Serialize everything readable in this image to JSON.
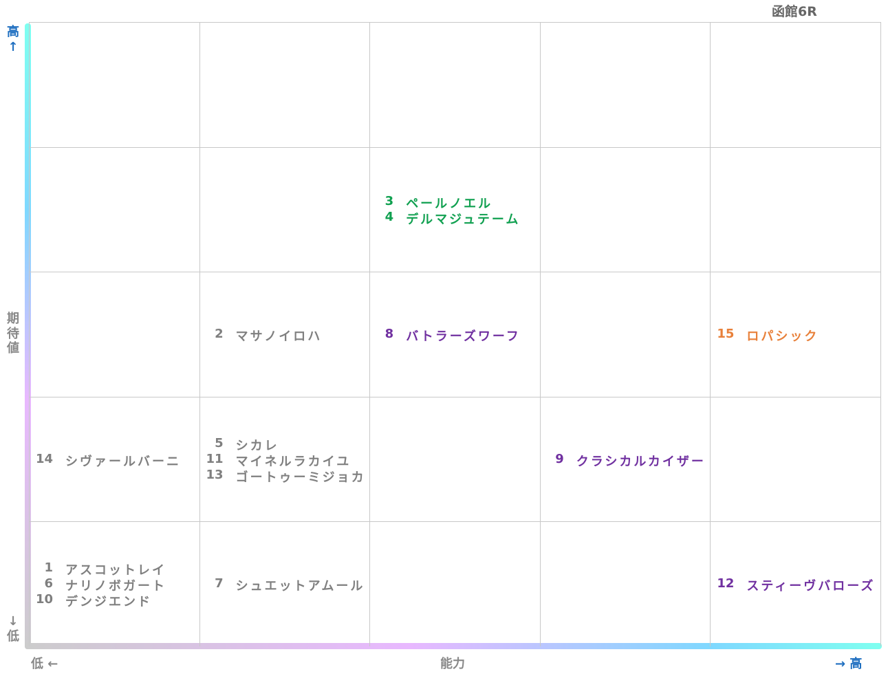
{
  "title": "函館6R",
  "y_axis": {
    "high": "高↑",
    "label": "期待値",
    "low": "↓低"
  },
  "x_axis": {
    "low": "低 ←",
    "label": "能力",
    "high": "→ 高"
  },
  "grid": {
    "rows": [
      [
        [],
        [],
        [],
        [],
        []
      ],
      [
        [],
        [],
        [
          {
            "number": 3,
            "name": "ペールノエル",
            "color": "#10a050"
          },
          {
            "number": 4,
            "name": "デルマジュテーム",
            "color": "#10a050"
          }
        ],
        [],
        []
      ],
      [
        [],
        [
          {
            "number": 2,
            "name": "マサノイロハ",
            "color": "#7f7f7f"
          }
        ],
        [
          {
            "number": 8,
            "name": "バトラーズワーフ",
            "color": "#7030a0"
          }
        ],
        [],
        [
          {
            "number": 15,
            "name": "ロパシック",
            "color": "#e8803a"
          }
        ]
      ],
      [
        [
          {
            "number": 14,
            "name": "シヴァールバーニ",
            "color": "#7f7f7f"
          }
        ],
        [
          {
            "number": 5,
            "name": "シカレ",
            "color": "#7f7f7f"
          },
          {
            "number": 11,
            "name": "マイネルラカイユ",
            "color": "#7f7f7f"
          },
          {
            "number": 13,
            "name": "ゴートゥーミジョカ",
            "color": "#7f7f7f"
          }
        ],
        [],
        [
          {
            "number": 9,
            "name": "クラシカルカイザー",
            "color": "#7030a0"
          }
        ],
        []
      ],
      [
        [
          {
            "number": 1,
            "name": "アスコットレイ",
            "color": "#7f7f7f"
          },
          {
            "number": 6,
            "name": "ナリノボガート",
            "color": "#7f7f7f"
          },
          {
            "number": 10,
            "name": "デンジエンド",
            "color": "#7f7f7f"
          }
        ],
        [
          {
            "number": 7,
            "name": "シュエットアムール",
            "color": "#7f7f7f"
          }
        ],
        [],
        [],
        [
          {
            "number": 12,
            "name": "スティーヴバローズ",
            "color": "#7030a0"
          }
        ]
      ]
    ]
  }
}
